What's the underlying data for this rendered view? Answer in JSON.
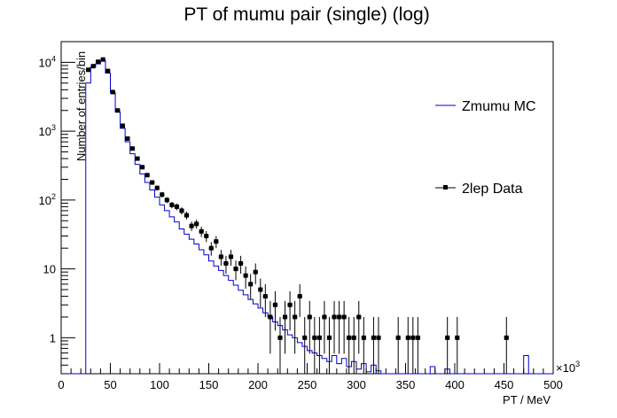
{
  "chart_data": {
    "type": "histogram",
    "title": "PT of mumu pair (single) (log)",
    "xlabel": "PT / MeV",
    "ylabel": "Number of entries/bin",
    "x_exponent_label": "×10",
    "x_exponent_power": "3",
    "xlim": [
      0,
      500
    ],
    "ylim": [
      0.3,
      20000
    ],
    "yscale": "log",
    "x_ticks": [
      "0",
      "50",
      "100",
      "150",
      "200",
      "250",
      "300",
      "350",
      "400",
      "450",
      "500"
    ],
    "y_ticks": [
      {
        "value": 1,
        "base": "1",
        "exp": ""
      },
      {
        "value": 10,
        "base": "10",
        "exp": ""
      },
      {
        "value": 100,
        "base": "10",
        "exp": "2"
      },
      {
        "value": 1000,
        "base": "10",
        "exp": "3"
      },
      {
        "value": 10000,
        "base": "10",
        "exp": "4"
      }
    ],
    "grid": false,
    "legend_position": "right",
    "bin_width": 5,
    "series": [
      {
        "name": "Zmumu MC",
        "style": "step",
        "color": "#0000cc",
        "bins": [
          [
            25,
            5000
          ],
          [
            30,
            8500
          ],
          [
            35,
            9500
          ],
          [
            40,
            10500
          ],
          [
            45,
            7000
          ],
          [
            50,
            3600
          ],
          [
            55,
            1900
          ],
          [
            60,
            1100
          ],
          [
            65,
            700
          ],
          [
            70,
            470
          ],
          [
            75,
            330
          ],
          [
            80,
            240
          ],
          [
            85,
            180
          ],
          [
            90,
            140
          ],
          [
            95,
            110
          ],
          [
            100,
            85
          ],
          [
            105,
            70
          ],
          [
            110,
            57
          ],
          [
            115,
            48
          ],
          [
            120,
            38
          ],
          [
            125,
            32
          ],
          [
            130,
            27
          ],
          [
            135,
            23
          ],
          [
            140,
            19
          ],
          [
            145,
            16
          ],
          [
            150,
            13
          ],
          [
            155,
            11
          ],
          [
            160,
            9.5
          ],
          [
            165,
            8
          ],
          [
            170,
            6.8
          ],
          [
            175,
            5.8
          ],
          [
            180,
            4.9
          ],
          [
            185,
            4.2
          ],
          [
            190,
            3.6
          ],
          [
            195,
            3.1
          ],
          [
            200,
            2.7
          ],
          [
            205,
            2.3
          ],
          [
            210,
            2
          ],
          [
            215,
            1.7
          ],
          [
            220,
            1.5
          ],
          [
            225,
            1.3
          ],
          [
            230,
            1.1
          ],
          [
            235,
            1.0
          ],
          [
            240,
            0.85
          ],
          [
            245,
            0.75
          ],
          [
            250,
            0.65
          ],
          [
            255,
            0.6
          ],
          [
            260,
            0.55
          ],
          [
            265,
            0.5
          ],
          [
            270,
            0.45
          ],
          [
            275,
            0.55
          ],
          [
            280,
            0.42
          ],
          [
            285,
            0.5
          ],
          [
            290,
            0.38
          ],
          [
            295,
            0.45
          ],
          [
            300,
            0.35
          ],
          [
            305,
            0.42
          ],
          [
            310,
            0.32
          ],
          [
            315,
            0.4
          ],
          [
            320,
            0.33
          ],
          [
            375,
            0.38
          ],
          [
            390,
            0.35
          ],
          [
            470,
            0.55
          ]
        ]
      },
      {
        "name": "2lep Data",
        "style": "errorbar",
        "color": "#000000",
        "points": [
          {
            "x": 27.5,
            "y": 7800
          },
          {
            "x": 32.5,
            "y": 8800
          },
          {
            "x": 37.5,
            "y": 10200
          },
          {
            "x": 42.5,
            "y": 11000
          },
          {
            "x": 47.5,
            "y": 7500
          },
          {
            "x": 52.5,
            "y": 3700
          },
          {
            "x": 57.5,
            "y": 2000
          },
          {
            "x": 62.5,
            "y": 1200
          },
          {
            "x": 67.5,
            "y": 780
          },
          {
            "x": 72.5,
            "y": 560
          },
          {
            "x": 77.5,
            "y": 400
          },
          {
            "x": 82.5,
            "y": 300
          },
          {
            "x": 87.5,
            "y": 230
          },
          {
            "x": 92.5,
            "y": 180
          },
          {
            "x": 97.5,
            "y": 150
          },
          {
            "x": 102.5,
            "y": 120
          },
          {
            "x": 107.5,
            "y": 100
          },
          {
            "x": 112.5,
            "y": 85
          },
          {
            "x": 117.5,
            "y": 80
          },
          {
            "x": 122.5,
            "y": 70
          },
          {
            "x": 127.5,
            "y": 60
          },
          {
            "x": 132.5,
            "y": 42
          },
          {
            "x": 137.5,
            "y": 45
          },
          {
            "x": 142.5,
            "y": 35
          },
          {
            "x": 147.5,
            "y": 30
          },
          {
            "x": 152.5,
            "y": 20
          },
          {
            "x": 157.5,
            "y": 25
          },
          {
            "x": 162.5,
            "y": 15
          },
          {
            "x": 167.5,
            "y": 12
          },
          {
            "x": 172.5,
            "y": 15
          },
          {
            "x": 177.5,
            "y": 10
          },
          {
            "x": 182.5,
            "y": 12
          },
          {
            "x": 187.5,
            "y": 8
          },
          {
            "x": 192.5,
            "y": 6
          },
          {
            "x": 197.5,
            "y": 9
          },
          {
            "x": 202.5,
            "y": 5
          },
          {
            "x": 207.5,
            "y": 4
          },
          {
            "x": 212.5,
            "y": 2
          },
          {
            "x": 217.5,
            "y": 3
          },
          {
            "x": 222.5,
            "y": 1
          },
          {
            "x": 227.5,
            "y": 2
          },
          {
            "x": 232.5,
            "y": 3
          },
          {
            "x": 237.5,
            "y": 2
          },
          {
            "x": 242.5,
            "y": 4
          },
          {
            "x": 247.5,
            "y": 1
          },
          {
            "x": 252.5,
            "y": 2
          },
          {
            "x": 257.5,
            "y": 1
          },
          {
            "x": 262.5,
            "y": 1
          },
          {
            "x": 267.5,
            "y": 2
          },
          {
            "x": 272.5,
            "y": 1
          },
          {
            "x": 277.5,
            "y": 2
          },
          {
            "x": 282.5,
            "y": 2
          },
          {
            "x": 287.5,
            "y": 2
          },
          {
            "x": 292.5,
            "y": 1
          },
          {
            "x": 297.5,
            "y": 1
          },
          {
            "x": 302.5,
            "y": 2
          },
          {
            "x": 307.5,
            "y": 1
          },
          {
            "x": 317.5,
            "y": 1
          },
          {
            "x": 322.5,
            "y": 1
          },
          {
            "x": 342.5,
            "y": 1
          },
          {
            "x": 352.5,
            "y": 1
          },
          {
            "x": 357.5,
            "y": 1
          },
          {
            "x": 362.5,
            "y": 1
          },
          {
            "x": 392.5,
            "y": 1
          },
          {
            "x": 402.5,
            "y": 1
          },
          {
            "x": 452.5,
            "y": 1
          }
        ]
      }
    ]
  }
}
